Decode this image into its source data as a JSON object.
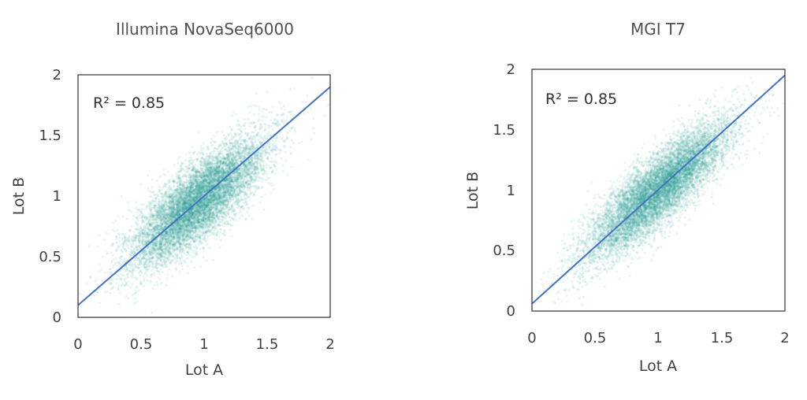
{
  "chart_data": [
    {
      "type": "scatter",
      "title": "Illumina NovaSeq6000",
      "xlabel": "Lot A",
      "ylabel": "Lot B",
      "xlim": [
        0,
        2
      ],
      "ylim": [
        0,
        2
      ],
      "xticks": [
        "0",
        "0.5",
        "1",
        "1.5",
        "2"
      ],
      "yticks": [
        "0",
        "0.5",
        "1",
        "1.5",
        "2"
      ],
      "annotation": "R² = 0.85",
      "fit_line": {
        "x": [
          0,
          2
        ],
        "y": [
          0.1,
          1.9
        ]
      },
      "density": {
        "center": [
          0.95,
          0.95
        ],
        "sd_major": 0.36,
        "sd_minor": 0.12,
        "angle_deg": 45
      },
      "colors": {
        "points": "#2a9a93",
        "line": "#4472c4"
      },
      "grid": false
    },
    {
      "type": "scatter",
      "title": "MGI T7",
      "xlabel": "Lot A",
      "ylabel": "Lot B",
      "xlim": [
        0,
        2
      ],
      "ylim": [
        0,
        2
      ],
      "xticks": [
        "0",
        "0.5",
        "1",
        "1.5",
        "2"
      ],
      "yticks": [
        "0",
        "0.5",
        "1",
        "1.5",
        "2"
      ],
      "annotation": "R² = 0.85",
      "fit_line": {
        "x": [
          0,
          2
        ],
        "y": [
          0.06,
          1.95
        ]
      },
      "density": {
        "center": [
          1.0,
          1.0
        ],
        "sd_major": 0.38,
        "sd_minor": 0.11,
        "angle_deg": 45
      },
      "colors": {
        "points": "#2a9a93",
        "line": "#4472c4"
      },
      "grid": false
    }
  ]
}
